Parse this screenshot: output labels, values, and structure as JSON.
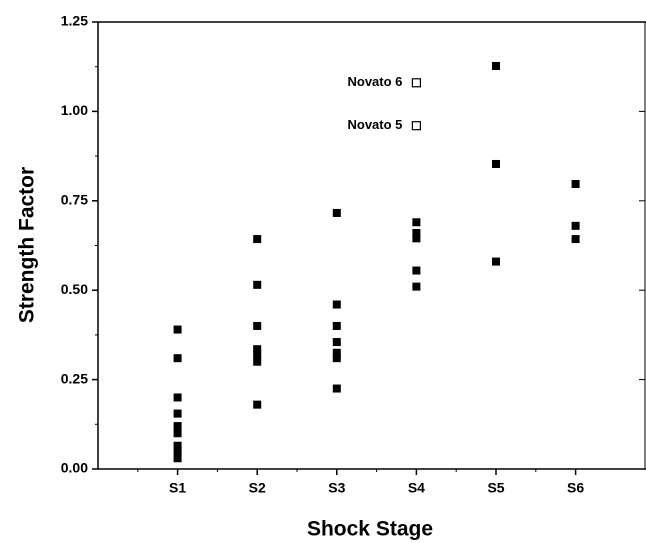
{
  "chart_data": {
    "type": "scatter",
    "x_label": "Shock Stage",
    "y_label": "Strength Factor",
    "categories": [
      "S1",
      "S2",
      "S3",
      "S4",
      "S5",
      "S6"
    ],
    "ylim": [
      0,
      1.25
    ],
    "yticks": [
      {
        "value": 0,
        "label": "0.00"
      },
      0.25,
      {
        "value": 0.5,
        "label": "0.50"
      },
      0.75,
      {
        "value": 1,
        "label": "1.00"
      },
      1.25
    ],
    "series": [
      {
        "color": "#000000",
        "marker": "filled-square",
        "x": [
          "S1",
          "S1",
          "S1",
          "S1",
          "S1",
          "S1",
          "S1",
          "S1",
          "S1",
          "S2",
          "S2",
          "S2",
          "S2",
          "S2",
          "S2",
          "S2",
          "S3",
          "S3",
          "S3",
          "S3",
          "S3",
          "S3",
          "S3",
          "S4",
          "S4",
          "S4",
          "S4",
          "S4",
          "S5",
          "S5",
          "S5",
          "S6",
          "S6",
          "S6"
        ],
        "values": [
          0.39,
          0.31,
          0.2,
          0.155,
          0.12,
          0.1,
          0.065,
          0.05,
          0.03,
          0.643,
          0.515,
          0.4,
          0.335,
          0.32,
          0.3,
          0.18,
          0.716,
          0.46,
          0.4,
          0.355,
          0.325,
          0.31,
          0.225,
          0.69,
          0.66,
          0.645,
          0.555,
          0.51,
          1.127,
          0.853,
          0.58,
          0.797,
          0.68,
          0.643
        ]
      },
      {
        "color": "#000000",
        "marker": "open-square",
        "x": [
          "S4",
          "S4"
        ],
        "values": [
          1.08,
          0.96
        ],
        "labels": [
          "Novato 6",
          "Novato 5"
        ]
      }
    ]
  }
}
